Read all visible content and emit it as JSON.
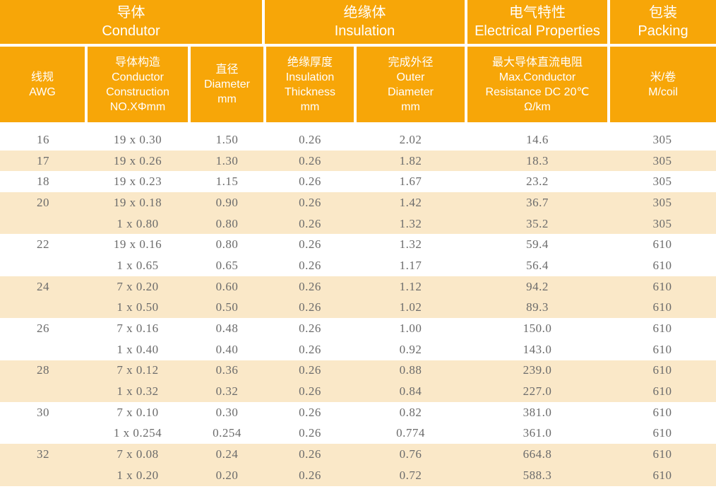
{
  "colors": {
    "header_bg": "#F7A608",
    "header_text": "#FFFFFF",
    "stripe_bg": "#FAE8C8",
    "body_text": "#6B6B6B"
  },
  "header": {
    "groups": [
      {
        "label": "导体\nCondutor"
      },
      {
        "label": "绝缘体\nInsulation"
      },
      {
        "label": "电气特性\nElectrical Properties"
      },
      {
        "label": "包装\nPacking"
      }
    ],
    "columns": [
      {
        "label": "线规\nAWG"
      },
      {
        "label": "导体构造\nConductor\nConstruction\nNO.XΦmm"
      },
      {
        "label": "直径\nDiameter\nmm"
      },
      {
        "label": "绝缘厚度\nInsulation\nThickness\nmm"
      },
      {
        "label": "完成外径\nOuter\nDiameter\nmm"
      },
      {
        "label": "最大导体直流电阻\nMax.Conductor\nResistance DC 20℃\nΩ/km"
      },
      {
        "label": "米/卷\nM/coil"
      }
    ]
  },
  "table": {
    "column_keys": [
      "awg",
      "construction",
      "diameter",
      "insulation_thickness",
      "outer_diameter",
      "resistance",
      "m_per_coil"
    ],
    "rows": [
      {
        "awg": "16",
        "construction": "19 x 0.30",
        "diameter": "1.50",
        "insulation_thickness": "0.26",
        "outer_diameter": "2.02",
        "resistance": "14.6",
        "m_per_coil": "305",
        "shaded": false
      },
      {
        "awg": "17",
        "construction": "19 x 0.26",
        "diameter": "1.30",
        "insulation_thickness": "0.26",
        "outer_diameter": "1.82",
        "resistance": "18.3",
        "m_per_coil": "305",
        "shaded": true
      },
      {
        "awg": "18",
        "construction": "19 x 0.23",
        "diameter": "1.15",
        "insulation_thickness": "0.26",
        "outer_diameter": "1.67",
        "resistance": "23.2",
        "m_per_coil": "305",
        "shaded": false
      },
      {
        "awg": "20",
        "construction": "19 x 0.18",
        "diameter": "0.90",
        "insulation_thickness": "0.26",
        "outer_diameter": "1.42",
        "resistance": "36.7",
        "m_per_coil": "305",
        "shaded": true
      },
      {
        "awg": "",
        "construction": "1 x 0.80",
        "diameter": "0.80",
        "insulation_thickness": "0.26",
        "outer_diameter": "1.32",
        "resistance": "35.2",
        "m_per_coil": "305",
        "shaded": true
      },
      {
        "awg": "22",
        "construction": "19 x 0.16",
        "diameter": "0.80",
        "insulation_thickness": "0.26",
        "outer_diameter": "1.32",
        "resistance": "59.4",
        "m_per_coil": "610",
        "shaded": false
      },
      {
        "awg": "",
        "construction": "1 x 0.65",
        "diameter": "0.65",
        "insulation_thickness": "0.26",
        "outer_diameter": "1.17",
        "resistance": "56.4",
        "m_per_coil": "610",
        "shaded": false
      },
      {
        "awg": "24",
        "construction": "7 x 0.20",
        "diameter": "0.60",
        "insulation_thickness": "0.26",
        "outer_diameter": "1.12",
        "resistance": "94.2",
        "m_per_coil": "610",
        "shaded": true
      },
      {
        "awg": "",
        "construction": "1 x 0.50",
        "diameter": "0.50",
        "insulation_thickness": "0.26",
        "outer_diameter": "1.02",
        "resistance": "89.3",
        "m_per_coil": "610",
        "shaded": true
      },
      {
        "awg": "26",
        "construction": "7 x 0.16",
        "diameter": "0.48",
        "insulation_thickness": "0.26",
        "outer_diameter": "1.00",
        "resistance": "150.0",
        "m_per_coil": "610",
        "shaded": false
      },
      {
        "awg": "",
        "construction": "1 x 0.40",
        "diameter": "0.40",
        "insulation_thickness": "0.26",
        "outer_diameter": "0.92",
        "resistance": "143.0",
        "m_per_coil": "610",
        "shaded": false
      },
      {
        "awg": "28",
        "construction": "7 x 0.12",
        "diameter": "0.36",
        "insulation_thickness": "0.26",
        "outer_diameter": "0.88",
        "resistance": "239.0",
        "m_per_coil": "610",
        "shaded": true
      },
      {
        "awg": "",
        "construction": "1 x 0.32",
        "diameter": "0.32",
        "insulation_thickness": "0.26",
        "outer_diameter": "0.84",
        "resistance": "227.0",
        "m_per_coil": "610",
        "shaded": true
      },
      {
        "awg": "30",
        "construction": "7 x 0.10",
        "diameter": "0.30",
        "insulation_thickness": "0.26",
        "outer_diameter": "0.82",
        "resistance": "381.0",
        "m_per_coil": "610",
        "shaded": false
      },
      {
        "awg": "",
        "construction": "1 x 0.254",
        "diameter": "0.254",
        "insulation_thickness": "0.26",
        "outer_diameter": "0.774",
        "resistance": "361.0",
        "m_per_coil": "610",
        "shaded": false
      },
      {
        "awg": "32",
        "construction": "7 x 0.08",
        "diameter": "0.24",
        "insulation_thickness": "0.26",
        "outer_diameter": "0.76",
        "resistance": "664.8",
        "m_per_coil": "610",
        "shaded": true
      },
      {
        "awg": "",
        "construction": "1 x 0.20",
        "diameter": "0.20",
        "insulation_thickness": "0.26",
        "outer_diameter": "0.72",
        "resistance": "588.3",
        "m_per_coil": "610",
        "shaded": true
      }
    ]
  },
  "chart_data": {
    "type": "table",
    "title": "",
    "column_groups": [
      "导体 Condutor",
      "绝缘体 Insulation",
      "电气特性 Electrical Properties",
      "包装 Packing"
    ],
    "columns": [
      "线规 AWG",
      "导体构造 Conductor Construction NO.XΦmm",
      "直径 Diameter mm",
      "绝缘厚度 Insulation Thickness mm",
      "完成外径 Outer Diameter mm",
      "最大导体直流电阻 Max.Conductor Resistance DC 20℃ Ω/km",
      "米/卷 M/coil"
    ],
    "rows": [
      [
        "16",
        "19 x 0.30",
        "1.50",
        "0.26",
        "2.02",
        "14.6",
        "305"
      ],
      [
        "17",
        "19 x 0.26",
        "1.30",
        "0.26",
        "1.82",
        "18.3",
        "305"
      ],
      [
        "18",
        "19 x 0.23",
        "1.15",
        "0.26",
        "1.67",
        "23.2",
        "305"
      ],
      [
        "20",
        "19 x 0.18",
        "0.90",
        "0.26",
        "1.42",
        "36.7",
        "305"
      ],
      [
        "",
        "1 x 0.80",
        "0.80",
        "0.26",
        "1.32",
        "35.2",
        "305"
      ],
      [
        "22",
        "19 x 0.16",
        "0.80",
        "0.26",
        "1.32",
        "59.4",
        "610"
      ],
      [
        "",
        "1 x 0.65",
        "0.65",
        "0.26",
        "1.17",
        "56.4",
        "610"
      ],
      [
        "24",
        "7 x 0.20",
        "0.60",
        "0.26",
        "1.12",
        "94.2",
        "610"
      ],
      [
        "",
        "1 x 0.50",
        "0.50",
        "0.26",
        "1.02",
        "89.3",
        "610"
      ],
      [
        "26",
        "7 x 0.16",
        "0.48",
        "0.26",
        "1.00",
        "150.0",
        "610"
      ],
      [
        "",
        "1 x 0.40",
        "0.40",
        "0.26",
        "0.92",
        "143.0",
        "610"
      ],
      [
        "28",
        "7 x 0.12",
        "0.36",
        "0.26",
        "0.88",
        "239.0",
        "610"
      ],
      [
        "",
        "1 x 0.32",
        "0.32",
        "0.26",
        "0.84",
        "227.0",
        "610"
      ],
      [
        "30",
        "7 x 0.10",
        "0.30",
        "0.26",
        "0.82",
        "381.0",
        "610"
      ],
      [
        "",
        "1 x 0.254",
        "0.254",
        "0.26",
        "0.774",
        "361.0",
        "610"
      ],
      [
        "32",
        "7 x 0.08",
        "0.24",
        "0.26",
        "0.76",
        "664.8",
        "610"
      ],
      [
        "",
        "1 x 0.20",
        "0.20",
        "0.26",
        "0.72",
        "588.3",
        "610"
      ]
    ]
  }
}
